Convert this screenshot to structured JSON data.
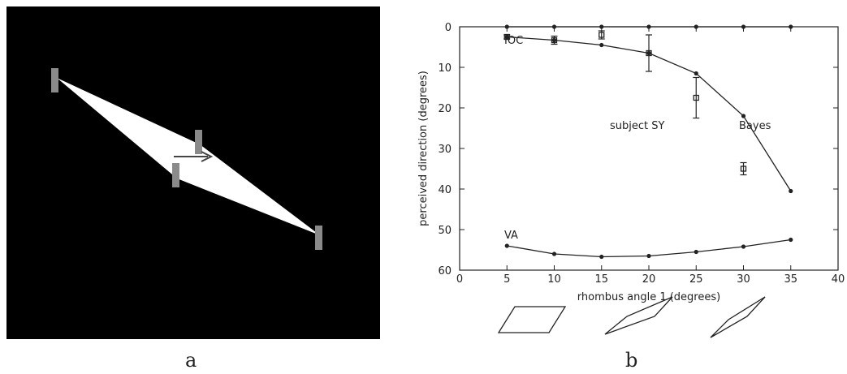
{
  "panel_labels": {
    "a": "a",
    "b": "b"
  },
  "chart_data": {
    "type": "line",
    "xlabel": "rhombus angle 1 (degrees)",
    "ylabel": "perceived direction (degrees)",
    "xlim": [
      0,
      40
    ],
    "ylim": [
      0,
      60
    ],
    "y_inverted": true,
    "x_ticks": [
      0,
      5,
      10,
      15,
      20,
      25,
      30,
      35,
      40
    ],
    "y_ticks": [
      0,
      10,
      20,
      30,
      40,
      50,
      60
    ],
    "grid": false,
    "series": [
      {
        "name": "IOC",
        "x": [
          5,
          10,
          15,
          20,
          25,
          30,
          35
        ],
        "y": [
          0,
          0,
          0,
          0,
          0,
          0,
          0
        ]
      },
      {
        "name": "Bayes",
        "x": [
          5,
          10,
          15,
          20,
          25,
          30,
          35
        ],
        "y": [
          2.5,
          3.3,
          4.5,
          6.5,
          11.5,
          22,
          40.5
        ]
      },
      {
        "name": "VA",
        "x": [
          5,
          10,
          15,
          20,
          25,
          30,
          35
        ],
        "y": [
          54,
          56,
          56.7,
          56.5,
          55.5,
          54.2,
          52.5
        ]
      },
      {
        "name": "subject SY",
        "x": [
          5,
          10,
          15,
          20,
          25,
          30
        ],
        "y": [
          2.5,
          3.3,
          2,
          6.5,
          17.5,
          35
        ],
        "error": [
          0.5,
          1,
          1,
          4.5,
          5,
          1.5
        ]
      }
    ],
    "annotations": [
      "IOC",
      "subject SY",
      "Bayes",
      "VA"
    ]
  }
}
